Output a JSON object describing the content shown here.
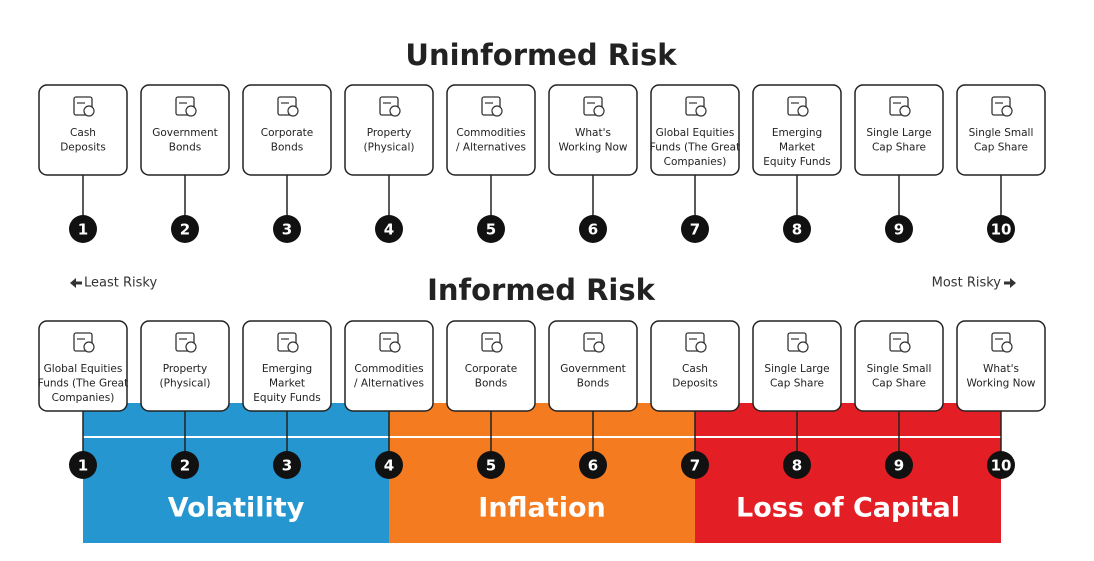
{
  "uninformed": {
    "title": "Uninformed Risk",
    "items": [
      {
        "number": 1,
        "label": [
          "Cash",
          "Deposits"
        ]
      },
      {
        "number": 2,
        "label": [
          "Government",
          "Bonds"
        ]
      },
      {
        "number": 3,
        "label": [
          "Corporate",
          "Bonds"
        ]
      },
      {
        "number": 4,
        "label": [
          "Property",
          "(Physical)"
        ]
      },
      {
        "number": 5,
        "label": [
          "Commodities",
          "/ Alternatives"
        ]
      },
      {
        "number": 6,
        "label": [
          "What's",
          "Working Now"
        ]
      },
      {
        "number": 7,
        "label": [
          "Global Equities",
          "Funds (The Great",
          "Companies)"
        ]
      },
      {
        "number": 8,
        "label": [
          "Emerging",
          "Market",
          "Equity Funds"
        ]
      },
      {
        "number": 9,
        "label": [
          "Single Large",
          "Cap Share"
        ]
      },
      {
        "number": 10,
        "label": [
          "Single Small",
          "Cap Share"
        ]
      }
    ]
  },
  "informed": {
    "title": "Informed Risk",
    "least": "Least Risky",
    "most": "Most Risky",
    "items": [
      {
        "number": 1,
        "label": [
          "Global Equities",
          "Funds (The Great",
          "Companies)"
        ]
      },
      {
        "number": 2,
        "label": [
          "Property",
          "(Physical)"
        ]
      },
      {
        "number": 3,
        "label": [
          "Emerging",
          "Market",
          "Equity Funds"
        ]
      },
      {
        "number": 4,
        "label": [
          "Commodities",
          "/ Alternatives"
        ]
      },
      {
        "number": 5,
        "label": [
          "Corporate",
          "Bonds"
        ]
      },
      {
        "number": 6,
        "label": [
          "Government",
          "Bonds"
        ]
      },
      {
        "number": 7,
        "label": [
          "Cash",
          "Deposits"
        ]
      },
      {
        "number": 8,
        "label": [
          "Single Large",
          "Cap Share"
        ]
      },
      {
        "number": 9,
        "label": [
          "Single Small",
          "Cap Share"
        ]
      },
      {
        "number": 10,
        "label": [
          "What's",
          "Working Now"
        ]
      }
    ],
    "bands": [
      "Volatility",
      "Inflation",
      "Loss of Capital"
    ]
  }
}
